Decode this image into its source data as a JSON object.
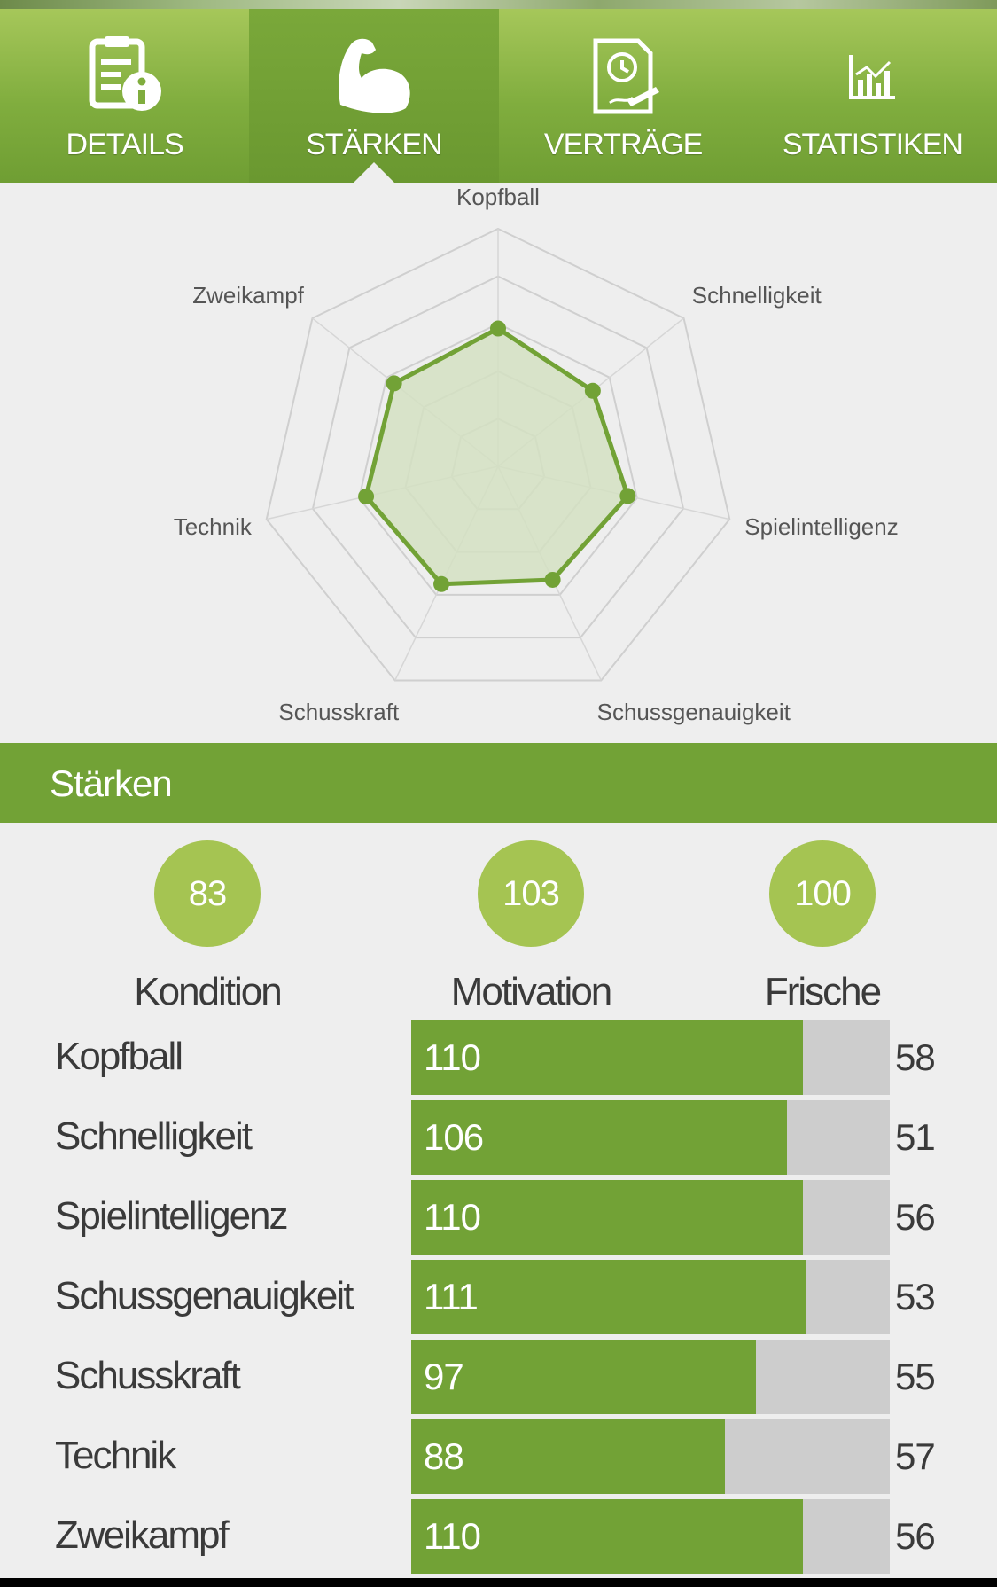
{
  "tabs": [
    {
      "label": "DETAILS",
      "icon": "document-info-icon",
      "active": false
    },
    {
      "label": "STÄRKEN",
      "icon": "flexed-arm-icon",
      "active": true
    },
    {
      "label": "VERTRÄGE",
      "icon": "contract-clock-icon",
      "active": false
    },
    {
      "label": "STATISTIKEN",
      "icon": "bar-chart-icon",
      "active": false
    }
  ],
  "chart_data": {
    "type": "radar",
    "axes": [
      "Kopfball",
      "Schnelligkeit",
      "Spielintelligenz",
      "Schussgenauigkeit",
      "Schusskraft",
      "Technik",
      "Zweikampf"
    ],
    "values": [
      58,
      51,
      56,
      53,
      55,
      57,
      56
    ],
    "rmax": 100,
    "grid_levels": 5,
    "grid": true,
    "series_color": "#72a236",
    "fill_color": "#d3e0c2"
  },
  "section": {
    "title": "Stärken"
  },
  "summary": [
    {
      "value": "83",
      "label": "Kondition"
    },
    {
      "value": "103",
      "label": "Motivation"
    },
    {
      "value": "100",
      "label": "Frische"
    }
  ],
  "stats": [
    {
      "name": "Kopfball",
      "value": "110",
      "fill": 0.818,
      "side": "58"
    },
    {
      "name": "Schnelligkeit",
      "value": "106",
      "fill": 0.785,
      "side": "51"
    },
    {
      "name": "Spielintelligenz",
      "value": "110",
      "fill": 0.818,
      "side": "56"
    },
    {
      "name": "Schussgenauigkeit",
      "value": "111",
      "fill": 0.825,
      "side": "53"
    },
    {
      "name": "Schusskraft",
      "value": "97",
      "fill": 0.72,
      "side": "55"
    },
    {
      "name": "Technik",
      "value": "88",
      "fill": 0.655,
      "side": "57"
    },
    {
      "name": "Zweikampf",
      "value": "110",
      "fill": 0.818,
      "side": "56"
    }
  ],
  "colors": {
    "primary": "#72a236",
    "accent": "#a5c452",
    "track": "#cdcdcd"
  }
}
